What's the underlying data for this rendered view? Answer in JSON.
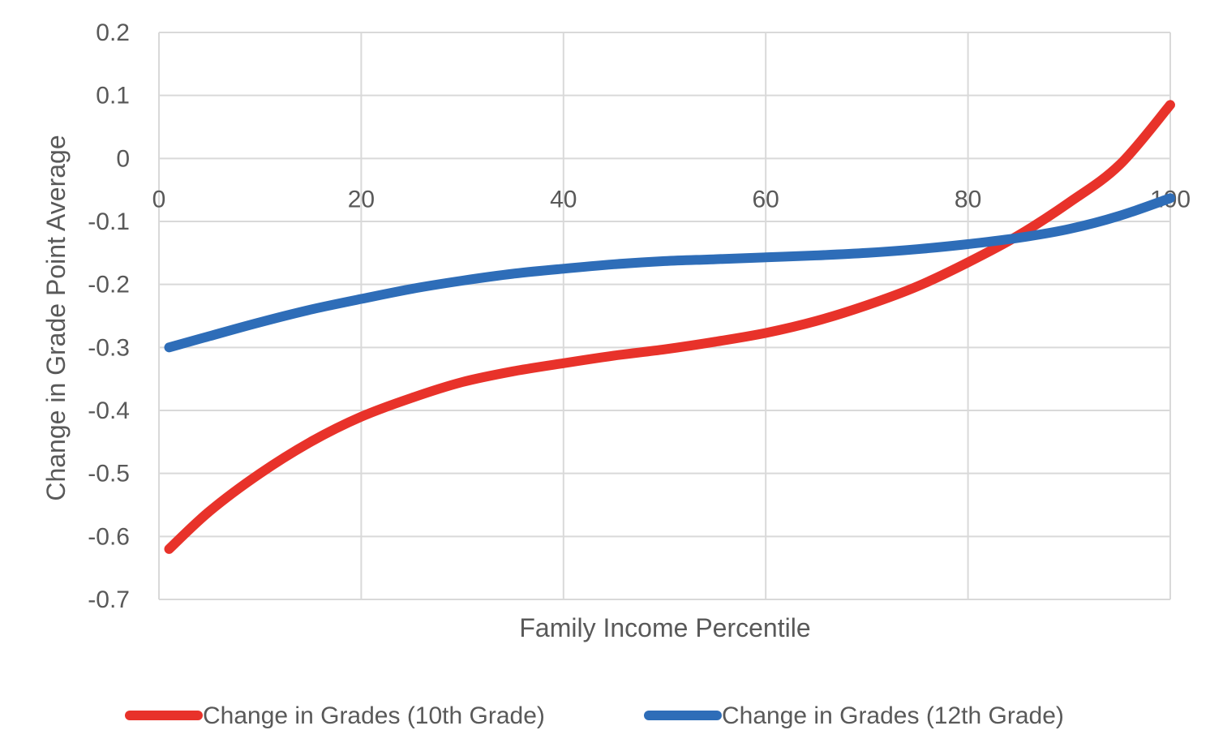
{
  "chart_data": {
    "type": "line",
    "title": "",
    "xlabel": "Family Income Percentile",
    "ylabel": "Change in Grade Point Average",
    "xlim": [
      0,
      100
    ],
    "ylim": [
      -0.7,
      0.2
    ],
    "xticks": [
      "0",
      "20",
      "40",
      "60",
      "80",
      "100"
    ],
    "yticks": [
      "0.2",
      "0.1",
      "0",
      "-0.1",
      "-0.2",
      "-0.3",
      "-0.4",
      "-0.5",
      "-0.6",
      "-0.7"
    ],
    "grid": true,
    "legend_position": "bottom",
    "series": [
      {
        "name": "Change in Grades (10th Grade)",
        "color": "#E8322A",
        "x": [
          1,
          5,
          10,
          15,
          20,
          25,
          30,
          35,
          40,
          45,
          50,
          55,
          60,
          65,
          70,
          75,
          80,
          85,
          90,
          95,
          100
        ],
        "y": [
          -0.62,
          -0.56,
          -0.5,
          -0.45,
          -0.41,
          -0.38,
          -0.355,
          -0.338,
          -0.325,
          -0.313,
          -0.303,
          -0.291,
          -0.277,
          -0.258,
          -0.233,
          -0.203,
          -0.165,
          -0.122,
          -0.07,
          -0.01,
          0.085
        ]
      },
      {
        "name": "Change in Grades (12th Grade)",
        "color": "#2E6DB8",
        "x": [
          1,
          5,
          10,
          15,
          20,
          25,
          30,
          35,
          40,
          45,
          50,
          55,
          60,
          65,
          70,
          75,
          80,
          85,
          90,
          95,
          100
        ],
        "y": [
          -0.3,
          -0.282,
          -0.26,
          -0.24,
          -0.223,
          -0.207,
          -0.194,
          -0.183,
          -0.175,
          -0.168,
          -0.163,
          -0.16,
          -0.157,
          -0.154,
          -0.15,
          -0.144,
          -0.136,
          -0.126,
          -0.112,
          -0.091,
          -0.063
        ]
      }
    ]
  }
}
